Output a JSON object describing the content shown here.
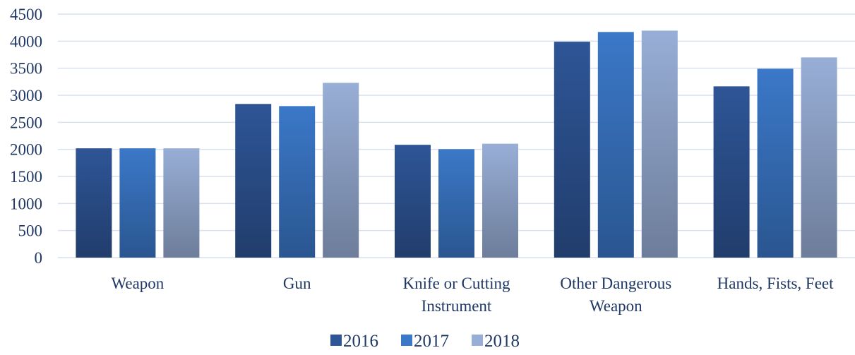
{
  "chart_data": {
    "type": "bar",
    "categories": [
      [
        "Weapon"
      ],
      [
        "Gun"
      ],
      [
        "Knife or Cutting",
        "Instrument"
      ],
      [
        "Other Dangerous",
        "Weapon"
      ],
      [
        "Hands, Fists, Feet"
      ]
    ],
    "series": [
      {
        "name": "2016",
        "values": [
          2020,
          2840,
          2085,
          3990,
          3165
        ],
        "color": "#2e5596"
      },
      {
        "name": "2017",
        "values": [
          2020,
          2800,
          2005,
          4170,
          3490
        ],
        "color": "#3b78c8"
      },
      {
        "name": "2018",
        "values": [
          2020,
          3230,
          2105,
          4195,
          3700
        ],
        "color": "#98aed6"
      }
    ],
    "yticks": [
      0,
      500,
      1000,
      1500,
      2000,
      2500,
      3000,
      3500,
      4000,
      4500
    ],
    "ylim": [
      0,
      4500
    ],
    "grid": true,
    "legend_position": "bottom-center",
    "title": "",
    "xlabel": "",
    "ylabel": ""
  }
}
